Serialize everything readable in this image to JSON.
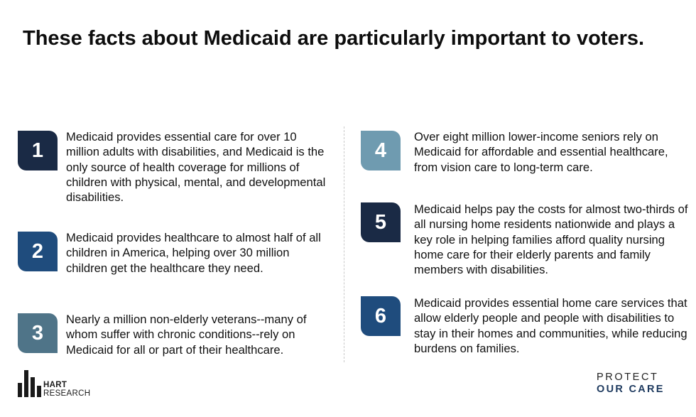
{
  "title": "These facts about Medicaid are particularly important to voters.",
  "facts": [
    {
      "number": "1",
      "color": "#1a2a45",
      "text": "Medicaid provides essential care for over 10 million adults with disabilities, and Medicaid is the only source of health coverage for millions of children with physical, mental, and developmental disabilities."
    },
    {
      "number": "2",
      "color": "#1f4c7d",
      "text": "Medicaid provides healthcare to almost half of all children in America, helping over 30 million children get the healthcare they need."
    },
    {
      "number": "3",
      "color": "#4f7488",
      "text": "Nearly a million non-elderly veterans--many of whom suffer with chronic conditions--rely on Medicaid for all or part of their healthcare."
    },
    {
      "number": "4",
      "color": "#6f9bb0",
      "text": "Over eight million lower-income seniors rely on Medicaid for affordable and essential healthcare, from vision care to long-term care."
    },
    {
      "number": "5",
      "color": "#1a2a45",
      "text": "Medicaid helps pay the costs for almost two-thirds of all nursing home residents nationwide and plays a key role in helping families afford quality nursing home care for their elderly parents and family members with disabilities."
    },
    {
      "number": "6",
      "color": "#1f4c7d",
      "text": "Medicaid provides essential home care services that allow elderly people and people with disabilities to stay in their homes and communities, while reducing burdens on families."
    }
  ],
  "logos": {
    "hart": {
      "line1": "HART",
      "line2": "RESEARCH"
    },
    "protect_our_care": {
      "line1": "PROTECT",
      "line2": "OUR CARE"
    }
  }
}
